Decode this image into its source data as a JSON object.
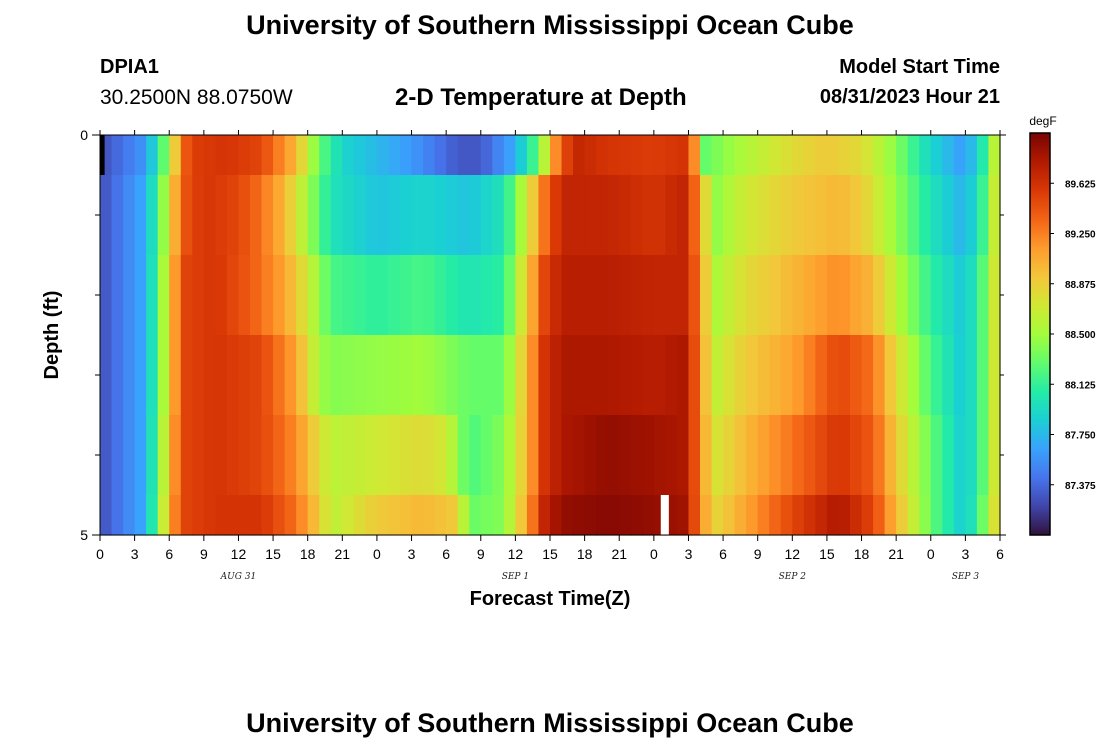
{
  "page": {
    "title": "University of Southern Mississippi Ocean Cube",
    "footer_title": "University of Southern Mississippi Ocean Cube",
    "station_id": "DPIA1",
    "station_coords": "30.2500N  88.0750W",
    "chart_title": "2-D Temperature at Depth",
    "model_start_label": "Model Start Time",
    "model_start_value": "08/31/2023 Hour 21"
  },
  "colors": {
    "ramp": [
      "#30123b",
      "#4145ab",
      "#4675ed",
      "#39a2fc",
      "#1bcfd4",
      "#24eca6",
      "#61fc6c",
      "#a4fc3b",
      "#d1e834",
      "#f3c63a",
      "#fe9b2d",
      "#f36315",
      "#d93806",
      "#b11901",
      "#7a0402"
    ],
    "missing": "#ffffff",
    "outline": "#000000"
  },
  "chart_data": {
    "type": "heatmap",
    "title": "2-D Temperature at Depth",
    "xlabel": "Forecast Time(Z)",
    "ylabel": "Depth (ft)",
    "x_unit": "hours since 08/31 00Z",
    "xlim": [
      0,
      78
    ],
    "ylim": [
      0,
      5
    ],
    "x_tick_labels": [
      "0",
      "3",
      "6",
      "9",
      "12",
      "15",
      "18",
      "21",
      "0",
      "3",
      "6",
      "9",
      "12",
      "15",
      "18",
      "21",
      "0",
      "3",
      "6",
      "9",
      "12",
      "15",
      "18",
      "21",
      "0",
      "3",
      "6"
    ],
    "x_tick_step_hours": 3,
    "date_labels": [
      {
        "text": "AUG 31",
        "hour": 12
      },
      {
        "text": "SEP 1",
        "hour": 36
      },
      {
        "text": "SEP 2",
        "hour": 60
      },
      {
        "text": "SEP 3",
        "hour": 75
      }
    ],
    "y_tick_labels": [
      {
        "text": "0",
        "depth": 0
      },
      {
        "text": "5",
        "depth": 5
      }
    ],
    "y_minor_ticks": [
      1,
      2,
      3,
      4
    ],
    "depth_bands": [
      0,
      0.5,
      1.5,
      2.5,
      3.5,
      4.5,
      5
    ],
    "colorbar": {
      "unit": "degF",
      "min": 87.0,
      "max": 90.0,
      "labels": [
        "89.625",
        "89.250",
        "88.875",
        "88.500",
        "88.125",
        "87.750",
        "87.375"
      ]
    },
    "profiles_degF": [
      [
        [
          0,
          87.25
        ],
        [
          4,
          87.6
        ],
        [
          6,
          88.5
        ],
        [
          7,
          89.3
        ],
        [
          8,
          89.55
        ],
        [
          11,
          89.6
        ],
        [
          14,
          89.5
        ],
        [
          17,
          89.0
        ],
        [
          19,
          88.3
        ],
        [
          21,
          87.9
        ],
        [
          27,
          87.6
        ],
        [
          31,
          87.3
        ],
        [
          33,
          87.3
        ],
        [
          36,
          87.7
        ],
        [
          38,
          88.3
        ],
        [
          39.5,
          89.2
        ],
        [
          41,
          89.7
        ],
        [
          44,
          89.6
        ],
        [
          48,
          89.55
        ],
        [
          50.5,
          89.6
        ],
        [
          51.5,
          89.2
        ],
        [
          52.5,
          88.3
        ],
        [
          55,
          88.5
        ],
        [
          60,
          88.8
        ],
        [
          63,
          88.9
        ],
        [
          66,
          88.8
        ],
        [
          69,
          88.4
        ],
        [
          72,
          87.9
        ],
        [
          75,
          87.6
        ],
        [
          77,
          88.2
        ],
        [
          78,
          89.0
        ]
      ],
      [
        [
          0,
          87.25
        ],
        [
          4,
          87.7
        ],
        [
          6,
          88.7
        ],
        [
          7,
          89.4
        ],
        [
          9,
          89.6
        ],
        [
          12,
          89.5
        ],
        [
          14,
          89.3
        ],
        [
          16,
          89.0
        ],
        [
          18,
          88.5
        ],
        [
          20,
          88.0
        ],
        [
          24,
          87.8
        ],
        [
          28,
          87.9
        ],
        [
          32,
          87.8
        ],
        [
          35,
          88.0
        ],
        [
          37,
          88.7
        ],
        [
          38.5,
          89.3
        ],
        [
          40,
          89.7
        ],
        [
          44,
          89.7
        ],
        [
          48,
          89.6
        ],
        [
          50.5,
          89.7
        ],
        [
          52,
          89.2
        ],
        [
          53,
          88.4
        ],
        [
          56,
          88.7
        ],
        [
          60,
          88.9
        ],
        [
          64,
          89.0
        ],
        [
          66,
          88.9
        ],
        [
          68,
          88.6
        ],
        [
          72,
          88.0
        ],
        [
          75,
          87.7
        ],
        [
          77,
          88.3
        ],
        [
          78,
          89.0
        ]
      ],
      [
        [
          0,
          87.25
        ],
        [
          4,
          87.7
        ],
        [
          6,
          88.8
        ],
        [
          7,
          89.5
        ],
        [
          10,
          89.6
        ],
        [
          13,
          89.4
        ],
        [
          16,
          89.1
        ],
        [
          18,
          88.7
        ],
        [
          20,
          88.2
        ],
        [
          24,
          88.1
        ],
        [
          28,
          88.2
        ],
        [
          32,
          88.0
        ],
        [
          35,
          88.1
        ],
        [
          37,
          88.9
        ],
        [
          38.5,
          89.5
        ],
        [
          40,
          89.75
        ],
        [
          44,
          89.75
        ],
        [
          48,
          89.7
        ],
        [
          50.5,
          89.7
        ],
        [
          52,
          89.3
        ],
        [
          53,
          88.5
        ],
        [
          56,
          88.8
        ],
        [
          60,
          89.0
        ],
        [
          64,
          89.2
        ],
        [
          67,
          89.0
        ],
        [
          69,
          88.6
        ],
        [
          72,
          88.1
        ],
        [
          75,
          87.8
        ],
        [
          77,
          88.4
        ],
        [
          78,
          89.0
        ]
      ],
      [
        [
          0,
          87.25
        ],
        [
          4,
          87.7
        ],
        [
          6,
          88.8
        ],
        [
          7,
          89.5
        ],
        [
          10,
          89.6
        ],
        [
          14,
          89.5
        ],
        [
          17,
          89.1
        ],
        [
          19,
          88.5
        ],
        [
          20,
          88.4
        ],
        [
          24,
          88.45
        ],
        [
          28,
          88.5
        ],
        [
          32,
          88.3
        ],
        [
          35,
          88.3
        ],
        [
          37,
          89.0
        ],
        [
          38.5,
          89.6
        ],
        [
          40,
          89.8
        ],
        [
          44,
          89.8
        ],
        [
          48,
          89.75
        ],
        [
          50.5,
          89.8
        ],
        [
          52,
          89.3
        ],
        [
          53,
          88.6
        ],
        [
          56,
          88.9
        ],
        [
          60,
          89.1
        ],
        [
          64,
          89.5
        ],
        [
          67,
          89.3
        ],
        [
          69,
          88.8
        ],
        [
          72,
          88.2
        ],
        [
          75,
          87.8
        ],
        [
          77,
          88.4
        ],
        [
          78,
          89.0
        ]
      ],
      [
        [
          0,
          87.25
        ],
        [
          4,
          87.7
        ],
        [
          6,
          88.9
        ],
        [
          7,
          89.5
        ],
        [
          10,
          89.6
        ],
        [
          14,
          89.5
        ],
        [
          17,
          89.2
        ],
        [
          19,
          88.8
        ],
        [
          20,
          88.6
        ],
        [
          24,
          88.7
        ],
        [
          28,
          88.8
        ],
        [
          30,
          88.7
        ],
        [
          32,
          88.2
        ],
        [
          35,
          88.4
        ],
        [
          37,
          89.0
        ],
        [
          38.5,
          89.6
        ],
        [
          40,
          89.8
        ],
        [
          44,
          89.9
        ],
        [
          48,
          89.85
        ],
        [
          50.5,
          89.8
        ],
        [
          52,
          89.3
        ],
        [
          53,
          88.7
        ],
        [
          56,
          89.0
        ],
        [
          60,
          89.3
        ],
        [
          64,
          89.6
        ],
        [
          67,
          89.4
        ],
        [
          69,
          88.9
        ],
        [
          72,
          88.3
        ],
        [
          75,
          87.8
        ],
        [
          77,
          88.4
        ],
        [
          78,
          89.0
        ]
      ],
      [
        [
          0,
          87.25
        ],
        [
          4,
          87.7
        ],
        [
          6,
          89.0
        ],
        [
          7,
          89.5
        ],
        [
          10,
          89.6
        ],
        [
          14,
          89.6
        ],
        [
          17,
          89.3
        ],
        [
          19,
          88.9
        ],
        [
          20,
          88.6
        ],
        [
          24,
          88.9
        ],
        [
          28,
          89.0
        ],
        [
          31,
          88.9
        ],
        [
          32,
          88.3
        ],
        [
          35,
          88.4
        ],
        [
          37,
          89.1
        ],
        [
          38.5,
          89.7
        ],
        [
          40,
          89.9
        ],
        [
          44,
          89.95
        ],
        [
          48,
          89.9
        ],
        [
          50.5,
          89.85
        ],
        [
          52,
          89.3
        ],
        [
          53,
          88.8
        ],
        [
          56,
          89.1
        ],
        [
          60,
          89.5
        ],
        [
          64,
          89.8
        ],
        [
          67,
          89.5
        ],
        [
          69,
          89.0
        ],
        [
          72,
          88.3
        ],
        [
          75,
          87.8
        ],
        [
          77,
          88.5
        ],
        [
          78,
          89.0
        ]
      ]
    ],
    "missing_cells": [
      {
        "hour_start": 0,
        "hour_end": 0.4,
        "depth_start": 0,
        "depth_end": 0.5,
        "color": "#000000"
      },
      {
        "hour_start": 48.6,
        "hour_end": 49.3,
        "depth_start": 4.5,
        "depth_end": 5,
        "color": "#ffffff"
      }
    ]
  }
}
